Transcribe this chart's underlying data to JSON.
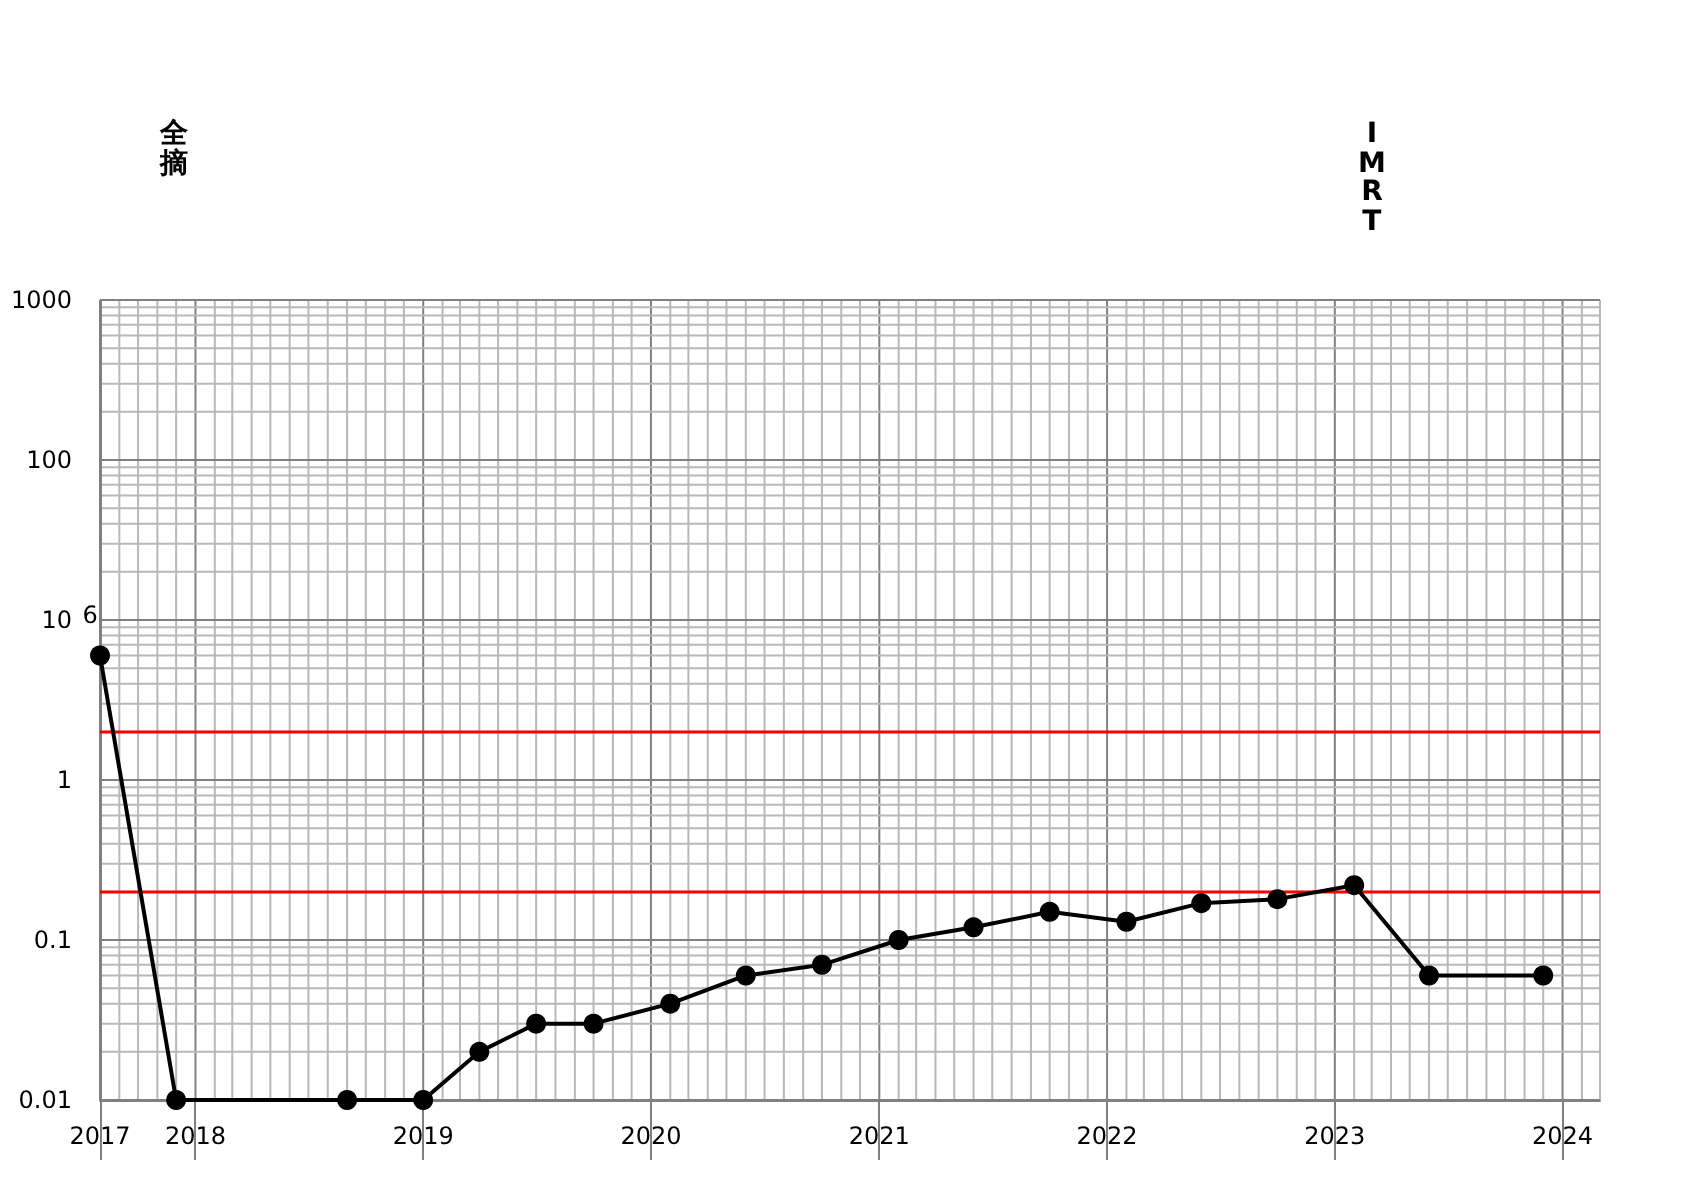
{
  "chart_data": {
    "type": "line",
    "log": true,
    "grid": true,
    "marker": "circle",
    "line_style": "solid",
    "x": [
      "2017-08",
      "2017-12",
      "2018-09",
      "2019-01",
      "2019-04",
      "2019-07",
      "2019-10",
      "2020-02",
      "2020-06",
      "2020-10",
      "2021-02",
      "2021-06",
      "2021-10",
      "2022-02",
      "2022-06",
      "2022-10",
      "2023-02",
      "2023-06",
      "2023-12"
    ],
    "series": [
      {
        "color": "#000000",
        "values": [
          6,
          0.01,
          0.01,
          0.01,
          0.02,
          0.03,
          0.03,
          0.04,
          0.06,
          0.07,
          0.1,
          0.12,
          0.15,
          0.13,
          0.17,
          0.18,
          0.22,
          0.06,
          0.06
        ],
        "value_labels": [
          "6",
          null,
          null,
          null,
          null,
          null,
          null,
          null,
          null,
          null,
          null,
          null,
          null,
          null,
          null,
          null,
          null,
          null,
          null
        ]
      }
    ],
    "xlim": [
      "2017-08",
      "2024-03"
    ],
    "xticks": [
      {
        "value": "2017-08",
        "label": "2017"
      },
      {
        "value": "2018-01",
        "label": "2018"
      },
      {
        "value": "2019-01",
        "label": "2019"
      },
      {
        "value": "2020-01",
        "label": "2020"
      },
      {
        "value": "2021-01",
        "label": "2021"
      },
      {
        "value": "2022-01",
        "label": "2022"
      },
      {
        "value": "2023-01",
        "label": "2023"
      },
      {
        "value": "2024-01",
        "label": "2024"
      }
    ],
    "ylim": [
      0.01,
      1000
    ],
    "yticks": [
      0.01,
      0.1,
      1,
      10,
      100,
      1000
    ],
    "ref_lines": [
      {
        "axis": "y",
        "value": 2,
        "color": "#ff0000"
      },
      {
        "axis": "y",
        "value": 0.2,
        "color": "#ff0000"
      }
    ],
    "annotations": [
      "全摘",
      "IMRT"
    ]
  }
}
